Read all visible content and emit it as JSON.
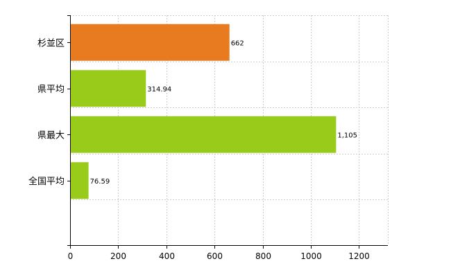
{
  "chart_data": {
    "type": "bar",
    "orientation": "horizontal",
    "categories": [
      "杉並区",
      "県平均",
      "県最大",
      "全国平均"
    ],
    "values": [
      662,
      314.94,
      1105,
      76.59
    ],
    "value_labels": [
      "662",
      "314.94",
      "1,105",
      "76.59"
    ],
    "colors": [
      "#e87a1f",
      "#99cc1a",
      "#99cc1a",
      "#99cc1a"
    ],
    "xlim": [
      0,
      1320
    ],
    "xticks": [
      0,
      200,
      400,
      600,
      800,
      1000,
      1200
    ],
    "title": "",
    "xlabel": "",
    "ylabel": "",
    "grid": true,
    "legend": "none"
  }
}
